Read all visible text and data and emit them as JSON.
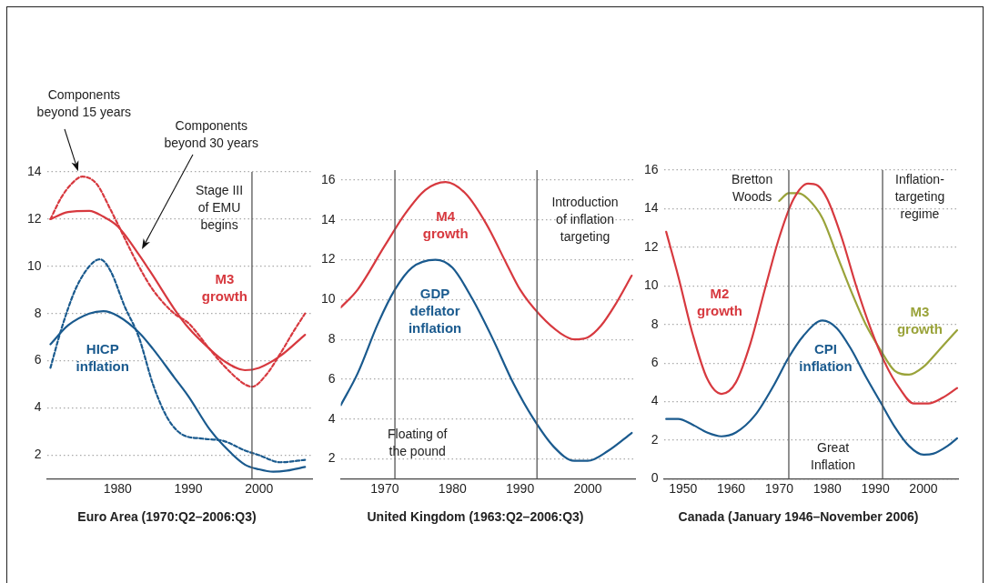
{
  "chart_data": [
    {
      "type": "line",
      "title": "Euro Area (1970:Q2–2006:Q3)",
      "xlim": [
        1970,
        2007.5
      ],
      "xticks": [
        1980,
        1990,
        2000
      ],
      "ylim": [
        1,
        14
      ],
      "yticks": [
        2,
        4,
        6,
        8,
        10,
        12,
        14
      ],
      "grid": "y",
      "marker": "none",
      "series": [
        {
          "name": "M3 growth",
          "color": "#d7393f",
          "line_style": "solid",
          "x": [
            1970.5,
            1973,
            1976,
            1978,
            1980,
            1983,
            1985,
            1988,
            1990,
            1993,
            1995,
            1998,
            2000,
            2003,
            2006.5
          ],
          "values": [
            12.0,
            12.3,
            12.35,
            12.1,
            11.7,
            10.5,
            9.6,
            8.2,
            7.4,
            6.5,
            6.0,
            5.6,
            5.7,
            6.2,
            7.1
          ]
        },
        {
          "color": "#d7393f",
          "line_style": "dashed",
          "x": [
            1970.5,
            1972,
            1973.5,
            1975,
            1977,
            1979,
            1980,
            1983,
            1985,
            1988,
            1990,
            1993,
            1995,
            1998,
            1999,
            2001,
            2003,
            2005,
            2006.5
          ],
          "values": [
            12.0,
            12.9,
            13.5,
            13.8,
            13.5,
            12.4,
            11.8,
            10.0,
            9.0,
            8.0,
            7.6,
            6.5,
            5.8,
            5.0,
            4.9,
            5.4,
            6.3,
            7.3,
            8.0
          ]
        },
        {
          "name": "HICP inflation",
          "color": "#1a5a8e",
          "line_style": "solid",
          "x": [
            1970.5,
            1973,
            1976,
            1978,
            1980,
            1983,
            1985,
            1988,
            1990,
            1993,
            1995,
            1998,
            2000,
            2002,
            2004,
            2006.5
          ],
          "values": [
            6.7,
            7.5,
            8.0,
            8.1,
            7.9,
            7.2,
            6.5,
            5.3,
            4.5,
            3.1,
            2.4,
            1.6,
            1.4,
            1.3,
            1.35,
            1.5
          ]
        },
        {
          "color": "#1a5a8e",
          "line_style": "dashed",
          "x": [
            1970.5,
            1972,
            1974,
            1976,
            1977.5,
            1979,
            1981,
            1983,
            1985,
            1987,
            1989,
            1992,
            1995,
            1998,
            2000,
            2003,
            2006.5
          ],
          "values": [
            5.7,
            7.3,
            9.0,
            10.0,
            10.3,
            9.8,
            8.3,
            7.0,
            5.0,
            3.6,
            2.9,
            2.7,
            2.6,
            2.2,
            2.0,
            1.7,
            1.8
          ]
        }
      ],
      "ref_lines": [
        {
          "axis": "x",
          "value": 1999,
          "label": "Stage III of EMU begins",
          "color": "#555555"
        }
      ],
      "annotations": [
        "Components beyond 15 years",
        "Components beyond 30 years"
      ]
    },
    {
      "type": "line",
      "title": "United Kingdom (1963:Q2–2006:Q3)",
      "xlim": [
        1963.5,
        2007
      ],
      "xticks": [
        1970,
        1980,
        1990,
        2000
      ],
      "ylim": [
        1,
        16.5
      ],
      "yticks": [
        2,
        4,
        6,
        8,
        10,
        12,
        14,
        16
      ],
      "grid": "y",
      "marker": "none",
      "series": [
        {
          "name": "M4 growth",
          "color": "#d7393f",
          "line_style": "solid",
          "x": [
            1963.5,
            1966,
            1970,
            1973,
            1976,
            1979,
            1982,
            1985,
            1988,
            1990,
            1993,
            1996,
            1998,
            2000,
            2002,
            2004,
            2006.5
          ],
          "values": [
            9.6,
            10.5,
            12.7,
            14.3,
            15.5,
            15.9,
            15.3,
            13.8,
            11.8,
            10.5,
            9.2,
            8.3,
            8.0,
            8.1,
            8.7,
            9.7,
            11.2
          ]
        },
        {
          "name": "GDP deflator inflation",
          "color": "#1a5a8e",
          "line_style": "solid",
          "x": [
            1963.5,
            1966,
            1969,
            1971.5,
            1974,
            1977.5,
            1980,
            1983,
            1986,
            1989,
            1992,
            1995,
            1998,
            2000,
            2003,
            2006.5
          ],
          "values": [
            4.7,
            6.3,
            8.8,
            10.5,
            11.6,
            12.0,
            11.6,
            10.0,
            8.0,
            5.8,
            4.0,
            2.6,
            1.9,
            1.9,
            2.4,
            3.3
          ]
        }
      ],
      "ref_lines": [
        {
          "axis": "x",
          "value": 1971.5,
          "label": "Floating of the pound",
          "color": "#555555"
        },
        {
          "axis": "x",
          "value": 1992.5,
          "label": "Introduction of inflation targeting",
          "color": "#555555"
        }
      ]
    },
    {
      "type": "line",
      "title": "Canada (January 1946–November 2006)",
      "xlim": [
        1946,
        2007.2
      ],
      "xticks": [
        1950,
        1960,
        1970,
        1980,
        1990,
        2000
      ],
      "ylim": [
        0,
        16
      ],
      "yticks": [
        0,
        2,
        4,
        6,
        8,
        10,
        12,
        14,
        16
      ],
      "grid": "y",
      "marker": "none",
      "series": [
        {
          "name": "M2 growth",
          "color": "#d7393f",
          "line_style": "solid",
          "x": [
            1946.5,
            1949,
            1952,
            1955,
            1958,
            1961,
            1964,
            1967,
            1970,
            1973,
            1976,
            1978,
            1980,
            1983,
            1986,
            1989,
            1992,
            1995,
            1998,
            2001,
            2004,
            2007
          ],
          "values": [
            12.8,
            10.5,
            7.5,
            5.2,
            4.4,
            5.0,
            7.0,
            9.8,
            12.5,
            14.5,
            15.3,
            15.2,
            14.5,
            12.5,
            10.0,
            7.8,
            6.0,
            4.7,
            3.9,
            3.9,
            4.2,
            4.7
          ]
        },
        {
          "name": "M3 growth",
          "color": "#9aa33a",
          "line_style": "solid",
          "x": [
            1970,
            1972,
            1974,
            1976,
            1979,
            1982,
            1985,
            1988,
            1991,
            1994,
            1997,
            2000,
            2003,
            2007
          ],
          "values": [
            14.4,
            14.8,
            14.8,
            14.5,
            13.5,
            11.6,
            9.7,
            8.0,
            6.7,
            5.6,
            5.4,
            5.8,
            6.6,
            7.7
          ]
        },
        {
          "name": "CPI inflation",
          "color": "#1a5a8e",
          "line_style": "solid",
          "x": [
            1946.5,
            1949,
            1952,
            1955,
            1958,
            1961,
            1965,
            1969,
            1972,
            1975,
            1979,
            1982,
            1985,
            1988,
            1991,
            1994,
            1997,
            2000,
            2002,
            2005,
            2007
          ],
          "values": [
            3.1,
            3.1,
            2.8,
            2.4,
            2.2,
            2.4,
            3.3,
            4.9,
            6.3,
            7.4,
            8.2,
            7.8,
            6.7,
            5.3,
            4.0,
            2.7,
            1.7,
            1.25,
            1.3,
            1.7,
            2.1
          ]
        }
      ],
      "ref_lines": [
        {
          "axis": "x",
          "value": 1972,
          "label": "Bretton Woods",
          "color": "#555555"
        },
        {
          "axis": "x",
          "value": 1991.5,
          "label": "Inflation-targeting regime",
          "color": "#555555"
        }
      ],
      "annotations": [
        "Great Inflation"
      ]
    }
  ]
}
